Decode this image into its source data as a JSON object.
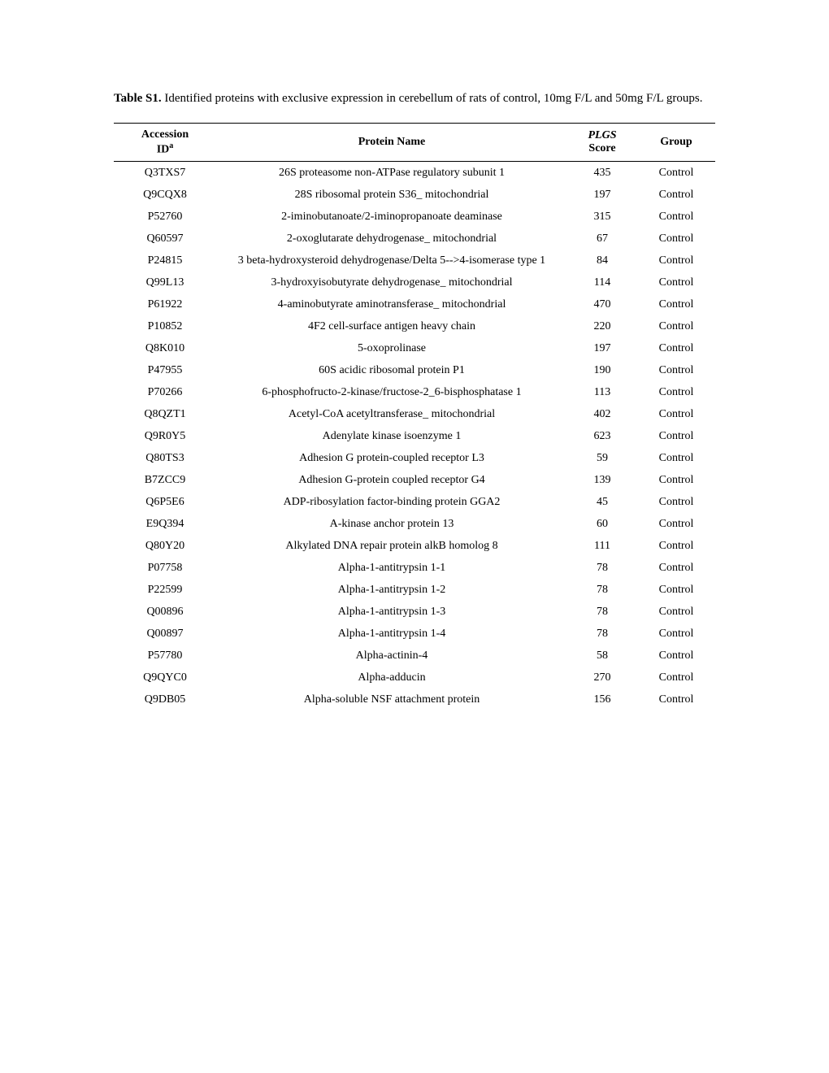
{
  "caption": {
    "label": "Table S1.",
    "text": " Identified proteins with exclusive expression in cerebellum of rats of control, 10mg F/L and 50mg F/L groups."
  },
  "headers": {
    "id_line1": "Accession",
    "id_line2": "ID",
    "id_sup": "a",
    "name": "Protein Name",
    "score_line1": "PLGS",
    "score_line2": "Score",
    "group": "Group"
  },
  "rows": [
    {
      "id": "Q3TXS7",
      "name": "26S proteasome non-ATPase regulatory subunit 1",
      "score": "435",
      "group": "Control"
    },
    {
      "id": "Q9CQX8",
      "name": "28S ribosomal protein S36_ mitochondrial",
      "score": "197",
      "group": "Control"
    },
    {
      "id": "P52760",
      "name": "2-iminobutanoate/2-iminopropanoate deaminase",
      "score": "315",
      "group": "Control"
    },
    {
      "id": "Q60597",
      "name": "2-oxoglutarate dehydrogenase_ mitochondrial",
      "score": "67",
      "group": "Control"
    },
    {
      "id": "P24815",
      "name": "3 beta-hydroxysteroid dehydrogenase/Delta 5-->4-isomerase type 1",
      "score": "84",
      "group": "Control"
    },
    {
      "id": "Q99L13",
      "name": "3-hydroxyisobutyrate dehydrogenase_ mitochondrial",
      "score": "114",
      "group": "Control"
    },
    {
      "id": "P61922",
      "name": "4-aminobutyrate aminotransferase_ mitochondrial",
      "score": "470",
      "group": "Control"
    },
    {
      "id": "P10852",
      "name": "4F2 cell-surface antigen heavy chain",
      "score": "220",
      "group": "Control"
    },
    {
      "id": "Q8K010",
      "name": "5-oxoprolinase",
      "score": "197",
      "group": "Control"
    },
    {
      "id": "P47955",
      "name": "60S acidic ribosomal protein P1",
      "score": "190",
      "group": "Control"
    },
    {
      "id": "P70266",
      "name": "6-phosphofructo-2-kinase/fructose-2_6-bisphosphatase 1",
      "score": "113",
      "group": "Control"
    },
    {
      "id": "Q8QZT1",
      "name": "Acetyl-CoA acetyltransferase_ mitochondrial",
      "score": "402",
      "group": "Control"
    },
    {
      "id": "Q9R0Y5",
      "name": "Adenylate kinase isoenzyme 1",
      "score": "623",
      "group": "Control"
    },
    {
      "id": "Q80TS3",
      "name": "Adhesion G protein-coupled receptor L3",
      "score": "59",
      "group": "Control"
    },
    {
      "id": "B7ZCC9",
      "name": "Adhesion G-protein coupled receptor G4",
      "score": "139",
      "group": "Control"
    },
    {
      "id": "Q6P5E6",
      "name": "ADP-ribosylation factor-binding protein GGA2",
      "score": "45",
      "group": "Control"
    },
    {
      "id": "E9Q394",
      "name": "A-kinase anchor protein 13",
      "score": "60",
      "group": "Control"
    },
    {
      "id": "Q80Y20",
      "name": "Alkylated DNA repair protein alkB homolog 8",
      "score": "111",
      "group": "Control"
    },
    {
      "id": "P07758",
      "name": "Alpha-1-antitrypsin 1-1",
      "score": "78",
      "group": "Control"
    },
    {
      "id": "P22599",
      "name": "Alpha-1-antitrypsin 1-2",
      "score": "78",
      "group": "Control"
    },
    {
      "id": "Q00896",
      "name": "Alpha-1-antitrypsin 1-3",
      "score": "78",
      "group": "Control"
    },
    {
      "id": "Q00897",
      "name": "Alpha-1-antitrypsin 1-4",
      "score": "78",
      "group": "Control"
    },
    {
      "id": "P57780",
      "name": "Alpha-actinin-4",
      "score": "58",
      "group": "Control"
    },
    {
      "id": "Q9QYC0",
      "name": "Alpha-adducin",
      "score": "270",
      "group": "Control"
    },
    {
      "id": "Q9DB05",
      "name": "Alpha-soluble NSF attachment protein",
      "score": "156",
      "group": "Control"
    }
  ]
}
